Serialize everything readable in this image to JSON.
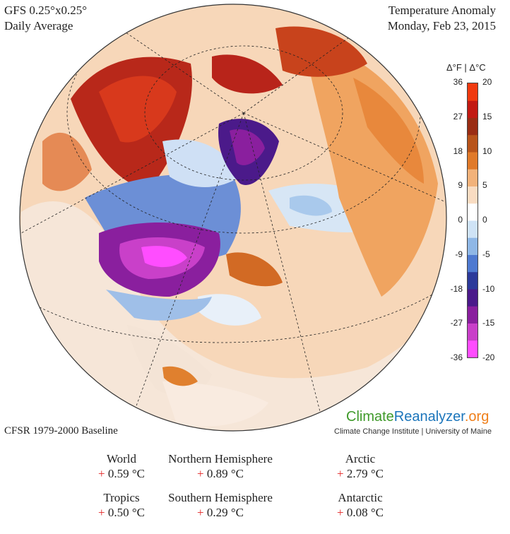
{
  "header": {
    "model": "GFS 0.25°x0.25°",
    "period": "Daily Average",
    "variable": "Temperature Anomaly",
    "date": "Monday, Feb 23, 2015"
  },
  "colorbar": {
    "header": "Δ°F | Δ°C",
    "f_ticks": [
      "36",
      "27",
      "18",
      "9",
      "0",
      "-9",
      "-18",
      "-27",
      "-36"
    ],
    "c_ticks": [
      "20",
      "15",
      "10",
      "5",
      "0",
      "-5",
      "-10",
      "-15",
      "-20"
    ],
    "colors": [
      "#ff4dff",
      "#c940c9",
      "#8a1f9e",
      "#4b1a8a",
      "#2c3a9a",
      "#4f7ad0",
      "#8fb7e6",
      "#cfe3f6",
      "#ffffff",
      "#f9dcc2",
      "#f2b27a",
      "#e07a2a",
      "#b8541b",
      "#9a2d14",
      "#c21a12",
      "#f03a10"
    ]
  },
  "brand": {
    "part1": "Climate",
    "part2": "Reanalyzer",
    "part3": ".org"
  },
  "credit": "Climate Change Institute | University of Maine",
  "baseline": "CFSR 1979-2000 Baseline",
  "stats": [
    {
      "label": "World",
      "sign": "+",
      "value": "0.59 °C"
    },
    {
      "label": "Northern Hemisphere",
      "sign": "+",
      "value": "0.89 °C"
    },
    {
      "label": "Arctic",
      "sign": "+",
      "value": "2.79 °C"
    },
    {
      "label": "Tropics",
      "sign": "+",
      "value": "0.50 °C"
    },
    {
      "label": "Southern Hemisphere",
      "sign": "+",
      "value": "0.29 °C"
    },
    {
      "label": "Antarctic",
      "sign": "+",
      "value": "0.08 °C"
    }
  ]
}
